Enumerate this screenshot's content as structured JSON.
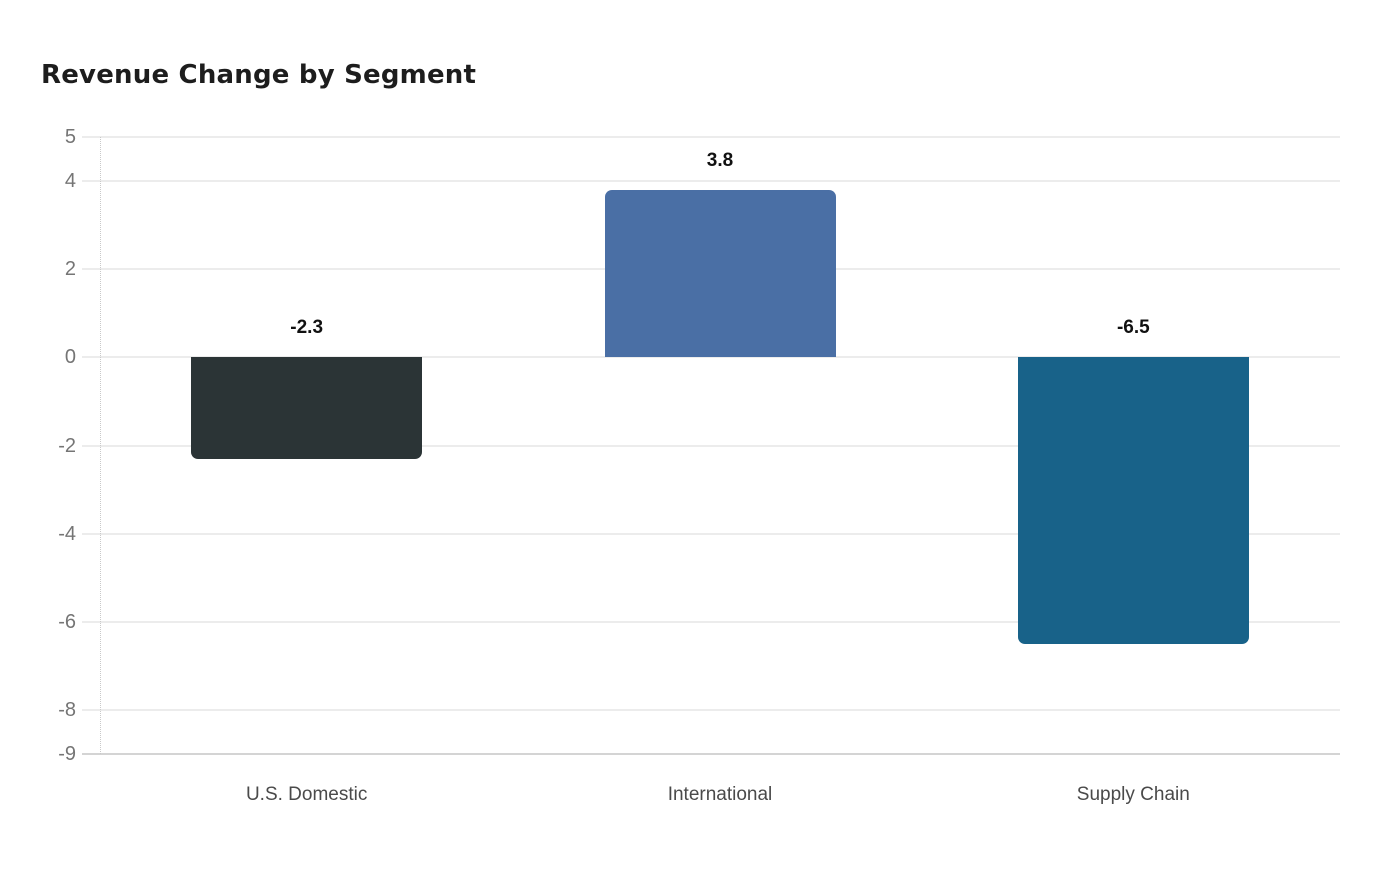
{
  "chart_data": {
    "type": "bar",
    "title": "Revenue Change by Segment",
    "categories": [
      "U.S. Domestic",
      "International",
      "Supply Chain"
    ],
    "values": [
      -2.3,
      3.8,
      -6.5
    ],
    "value_labels": [
      "-2.3",
      "3.8",
      "-6.5"
    ],
    "bar_colors": [
      "#2b3436",
      "#4a6fa5",
      "#186289"
    ],
    "xlabel": "",
    "ylabel": "",
    "ylim": [
      -9,
      5
    ],
    "yticks": [
      5,
      4,
      2,
      0,
      -2,
      -4,
      -6,
      -8,
      -9
    ],
    "ytick_labels": [
      "5",
      "4",
      "2",
      "0",
      "-2",
      "-4",
      "-6",
      "-8",
      "-9"
    ],
    "grid": "horizontal",
    "legend_position": "none",
    "colors": {
      "background": "#ffffff",
      "title_text": "#1d1d1d",
      "tick_text": "#757575",
      "category_text": "#4a4a4a",
      "value_text": "#111111",
      "gridline": "#ececec",
      "baseline": "#d4d4d4",
      "dotted_axis": "#c9c9c9"
    }
  }
}
